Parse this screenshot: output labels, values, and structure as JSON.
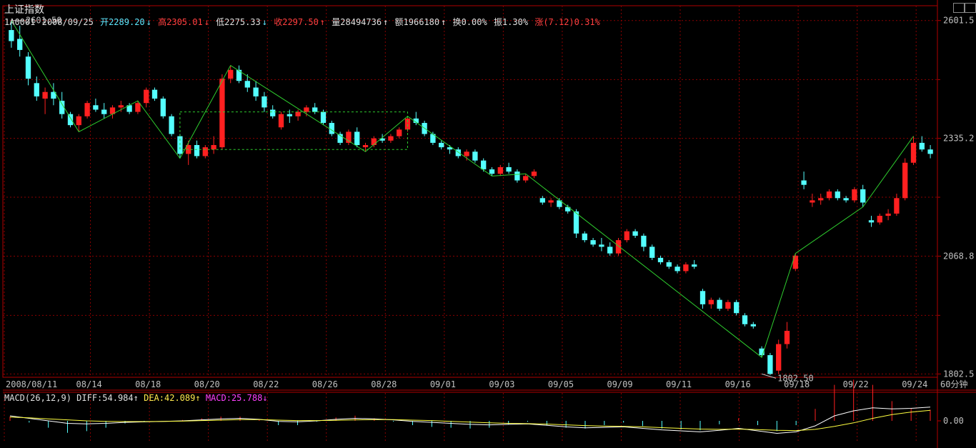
{
  "title": "上证指数",
  "info": {
    "code": "1A0001",
    "date": "2008/09/25",
    "open": "开2289.20",
    "high": "高2305.01",
    "low": "低2275.33",
    "close": "收2297.50",
    "volume": "量28494736",
    "amount": "额1966180",
    "turnover": "换0.00%",
    "amplitude": "振1.30%",
    "change": "涨(7.12)0.31%"
  },
  "period_label": "60分钟",
  "macd": {
    "name": "MACD(26,12,9)",
    "diff": "DIFF:54.984",
    "dea": "DEA:42.089",
    "macd": "MACD:25.788",
    "zero_label": "0.00"
  },
  "annotations": {
    "max_label": "2601.50",
    "min_label": "1802.50"
  },
  "colors": {
    "up": "#ff2020",
    "down": "#54ffff",
    "zigzag": "#2ecc2e",
    "grid": "#8b0000",
    "axis": "#b00000",
    "diff": "#ffffff",
    "dea": "#ffff40"
  },
  "chart_data": {
    "type": "candlestick",
    "ylim": [
      1795,
      2635
    ],
    "yticks": [
      "2601.5",
      "2335.2",
      "2068.8",
      "1802.5"
    ],
    "xticks": [
      "2008/08/11",
      "08/14",
      "08/18",
      "08/20",
      "08/22",
      "08/26",
      "08/28",
      "09/01",
      "09/03",
      "09/05",
      "09/09",
      "09/11",
      "09/16",
      "09/18",
      "09/22",
      "09/24"
    ],
    "candles": [
      [
        2580,
        2601.5,
        2540,
        2555
      ],
      [
        2560,
        2590,
        2520,
        2535
      ],
      [
        2520,
        2530,
        2455,
        2470
      ],
      [
        2460,
        2475,
        2420,
        2430
      ],
      [
        2425,
        2450,
        2390,
        2440
      ],
      [
        2440,
        2460,
        2410,
        2425
      ],
      [
        2420,
        2440,
        2380,
        2390
      ],
      [
        2390,
        2395,
        2360,
        2365
      ],
      [
        2365,
        2390,
        2350,
        2385
      ],
      [
        2385,
        2420,
        2380,
        2415
      ],
      [
        2410,
        2425,
        2395,
        2400
      ],
      [
        2400,
        2415,
        2380,
        2390
      ],
      [
        2390,
        2410,
        2380,
        2405
      ],
      [
        2405,
        2420,
        2395,
        2410
      ],
      [
        2410,
        2415,
        2390,
        2395
      ],
      [
        2395,
        2420,
        2390,
        2415
      ],
      [
        2415,
        2450,
        2405,
        2445
      ],
      [
        2445,
        2450,
        2420,
        2425
      ],
      [
        2425,
        2430,
        2380,
        2385
      ],
      [
        2385,
        2390,
        2340,
        2345
      ],
      [
        2340,
        2345,
        2290,
        2300
      ],
      [
        2300,
        2330,
        2275,
        2320
      ],
      [
        2320,
        2330,
        2290,
        2295
      ],
      [
        2295,
        2320,
        2290,
        2315
      ],
      [
        2310,
        2340,
        2300,
        2320
      ],
      [
        2315,
        2480,
        2310,
        2470
      ],
      [
        2470,
        2500,
        2460,
        2490
      ],
      [
        2490,
        2500,
        2460,
        2465
      ],
      [
        2465,
        2480,
        2440,
        2450
      ],
      [
        2450,
        2465,
        2420,
        2430
      ],
      [
        2430,
        2440,
        2395,
        2405
      ],
      [
        2400,
        2410,
        2380,
        2385
      ],
      [
        2360,
        2395,
        2355,
        2390
      ],
      [
        2390,
        2400,
        2370,
        2385
      ],
      [
        2385,
        2400,
        2375,
        2395
      ],
      [
        2395,
        2410,
        2385,
        2405
      ],
      [
        2405,
        2415,
        2390,
        2395
      ],
      [
        2395,
        2400,
        2365,
        2370
      ],
      [
        2370,
        2375,
        2340,
        2345
      ],
      [
        2345,
        2350,
        2320,
        2325
      ],
      [
        2325,
        2355,
        2320,
        2350
      ],
      [
        2350,
        2360,
        2315,
        2320
      ],
      [
        2315,
        2325,
        2305,
        2320
      ],
      [
        2320,
        2340,
        2315,
        2335
      ],
      [
        2335,
        2345,
        2325,
        2330
      ],
      [
        2330,
        2345,
        2325,
        2340
      ],
      [
        2340,
        2360,
        2335,
        2355
      ],
      [
        2355,
        2385,
        2350,
        2380
      ],
      [
        2380,
        2395,
        2365,
        2370
      ],
      [
        2370,
        2375,
        2340,
        2345
      ],
      [
        2345,
        2350,
        2320,
        2325
      ],
      [
        2325,
        2330,
        2310,
        2315
      ],
      [
        2315,
        2320,
        2300,
        2310
      ],
      [
        2310,
        2315,
        2290,
        2295
      ],
      [
        2295,
        2310,
        2285,
        2305
      ],
      [
        2305,
        2310,
        2280,
        2285
      ],
      [
        2285,
        2290,
        2260,
        2265
      ],
      [
        2265,
        2270,
        2250,
        2255
      ],
      [
        2255,
        2275,
        2250,
        2270
      ],
      [
        2270,
        2280,
        2255,
        2260
      ],
      [
        2260,
        2265,
        2235,
        2240
      ],
      [
        2240,
        2255,
        2235,
        2250
      ],
      [
        2250,
        2265,
        2245,
        2260
      ],
      [
        2200,
        2205,
        2185,
        2190
      ],
      [
        2190,
        2200,
        2180,
        2195
      ],
      [
        2195,
        2200,
        2175,
        2180
      ],
      [
        2180,
        2185,
        2165,
        2170
      ],
      [
        2170,
        2175,
        2110,
        2120
      ],
      [
        2120,
        2125,
        2100,
        2105
      ],
      [
        2105,
        2110,
        2090,
        2095
      ],
      [
        2095,
        2110,
        2080,
        2090
      ],
      [
        2090,
        2100,
        2070,
        2075
      ],
      [
        2075,
        2110,
        2070,
        2105
      ],
      [
        2105,
        2130,
        2100,
        2125
      ],
      [
        2125,
        2130,
        2110,
        2115
      ],
      [
        2115,
        2120,
        2080,
        2090
      ],
      [
        2090,
        2095,
        2060,
        2065
      ],
      [
        2065,
        2070,
        2050,
        2055
      ],
      [
        2055,
        2060,
        2040,
        2045
      ],
      [
        2045,
        2050,
        2030,
        2035
      ],
      [
        2035,
        2055,
        2030,
        2050
      ],
      [
        2050,
        2060,
        2040,
        2045
      ],
      [
        1990,
        1995,
        1950,
        1960
      ],
      [
        1960,
        1975,
        1950,
        1970
      ],
      [
        1970,
        1975,
        1945,
        1950
      ],
      [
        1950,
        1970,
        1945,
        1965
      ],
      [
        1965,
        1970,
        1935,
        1940
      ],
      [
        1935,
        1940,
        1910,
        1915
      ],
      [
        1915,
        1920,
        1905,
        1910
      ],
      [
        1860,
        1865,
        1840,
        1845
      ],
      [
        1845,
        1850,
        1800,
        1802.5
      ],
      [
        1810,
        1880,
        1802.5,
        1870
      ],
      [
        1870,
        1920,
        1860,
        1900
      ],
      [
        2040,
        2075,
        2035,
        2070
      ],
      [
        2240,
        2260,
        2220,
        2230
      ],
      [
        2190,
        2210,
        2180,
        2195
      ],
      [
        2195,
        2210,
        2185,
        2200
      ],
      [
        2200,
        2220,
        2195,
        2215
      ],
      [
        2215,
        2220,
        2195,
        2200
      ],
      [
        2200,
        2205,
        2190,
        2195
      ],
      [
        2195,
        2225,
        2190,
        2220
      ],
      [
        2220,
        2230,
        2180,
        2190
      ],
      [
        2150,
        2160,
        2135,
        2145
      ],
      [
        2145,
        2165,
        2140,
        2160
      ],
      [
        2160,
        2175,
        2150,
        2165
      ],
      [
        2165,
        2210,
        2160,
        2200
      ],
      [
        2200,
        2290,
        2195,
        2280
      ],
      [
        2280,
        2340,
        2275,
        2325
      ],
      [
        2325,
        2340,
        2305,
        2310
      ],
      [
        2310,
        2320,
        2290,
        2300
      ]
    ],
    "zigzag_segments": 2,
    "diff_values": [
      20,
      10,
      0,
      -10,
      -12,
      -10,
      -6,
      -4,
      -2,
      0,
      4,
      8,
      10,
      6,
      -2,
      -4,
      0,
      6,
      10,
      8,
      4,
      -2,
      -6,
      -10,
      -14,
      -16,
      -14,
      -12,
      -18,
      -24,
      -28,
      -26,
      -24,
      -30,
      -36,
      -40,
      -44,
      -38,
      -30,
      -40,
      -50,
      -44,
      -20,
      20,
      40,
      52,
      48,
      50,
      55
    ],
    "dea_values": [
      15,
      12,
      8,
      4,
      0,
      -2,
      -3,
      -3,
      -2,
      -1,
      1,
      3,
      5,
      5,
      3,
      1,
      1,
      2,
      4,
      5,
      5,
      3,
      1,
      -2,
      -5,
      -8,
      -10,
      -11,
      -13,
      -16,
      -19,
      -21,
      -22,
      -24,
      -27,
      -30,
      -33,
      -34,
      -33,
      -35,
      -38,
      -39,
      -34,
      -22,
      -8,
      10,
      25,
      35,
      42
    ]
  }
}
